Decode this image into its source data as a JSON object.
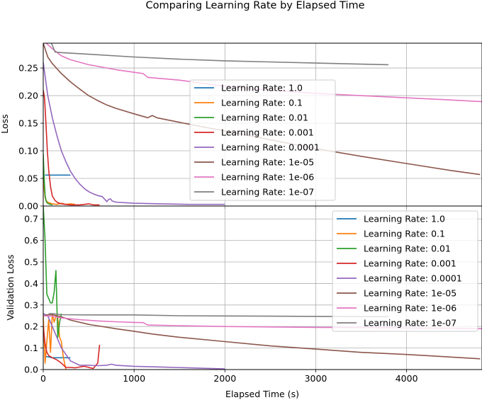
{
  "chart_data": {
    "type": "line",
    "title": "Comparing Learning Rate by Elapsed Time",
    "xlabel": "Elapsed Time (s)",
    "xlim": [
      0,
      4830
    ],
    "x_ticks": [
      0,
      1000,
      2000,
      3000,
      4000
    ],
    "x_tick_labels": [
      "0",
      "1000",
      "2000",
      "3000",
      "4000"
    ],
    "grid": true,
    "colors": [
      "#1f77b4",
      "#ff7f0e",
      "#2ca02c",
      "#d62728",
      "#9467bd",
      "#8c564b",
      "#e377c2",
      "#7f7f7f"
    ],
    "legend_labels": [
      "Learning Rate: 1.0",
      "Learning Rate: 0.1",
      "Learning Rate: 0.01",
      "Learning Rate: 0.001",
      "Learning Rate: 0.0001",
      "Learning Rate: 1e-05",
      "Learning Rate: 1e-06",
      "Learning Rate: 1e-07"
    ],
    "panels": [
      {
        "ylabel": "Loss",
        "ylim": [
          0,
          0.295
        ],
        "y_ticks": [
          0,
          0.05,
          0.1,
          0.15,
          0.2,
          0.25
        ],
        "y_tick_labels": [
          "0.00",
          "0.05",
          "0.10",
          "0.15",
          "0.20",
          "0.25"
        ],
        "legend_position": "center",
        "series": [
          {
            "name": "Learning Rate: 1.0",
            "x": [
              20,
              40,
              150,
              300
            ],
            "y": [
              0.056,
              0.056,
              0.056,
              0.056
            ]
          },
          {
            "name": "Learning Rate: 0.1",
            "x": [
              0,
              20,
              40,
              60,
              80,
              100,
              150,
              200,
              250,
              300,
              350
            ],
            "y": [
              0.05,
              0.015,
              0.008,
              0.006,
              0.005,
              0.004,
              0.003,
              0.005,
              0.003,
              0.004,
              0.003
            ]
          },
          {
            "name": "Learning Rate: 0.01",
            "x": [
              0,
              10,
              20,
              30,
              40,
              60,
              80,
              100
            ],
            "y": [
              0.095,
              0.05,
              0.02,
              0.01,
              0.006,
              0.004,
              0.003,
              0.002
            ]
          },
          {
            "name": "Learning Rate: 0.001",
            "x": [
              0,
              15,
              30,
              45,
              60,
              80,
              100,
              130,
              160,
              200,
              250,
              300,
              400,
              500,
              550,
              620
            ],
            "y": [
              0.21,
              0.195,
              0.15,
              0.1,
              0.065,
              0.035,
              0.018,
              0.01,
              0.006,
              0.004,
              0.003,
              0.002,
              0.002,
              0.004,
              0.002,
              0.002
            ]
          },
          {
            "name": "Learning Rate: 0.0001",
            "x": [
              0,
              50,
              100,
              150,
              200,
              250,
              300,
              350,
              400,
              450,
              500,
              550,
              600,
              650,
              700,
              720,
              740,
              760,
              800,
              1000,
              1300,
              1600,
              2000
            ],
            "y": [
              0.26,
              0.2,
              0.16,
              0.128,
              0.1,
              0.08,
              0.063,
              0.05,
              0.04,
              0.032,
              0.026,
              0.022,
              0.019,
              0.017,
              0.008,
              0.012,
              0.013,
              0.009,
              0.007,
              0.005,
              0.004,
              0.003,
              0.003
            ]
          },
          {
            "name": "Learning Rate: 1e-05",
            "x": [
              0,
              50,
              100,
              200,
              300,
              400,
              500,
              600,
              700,
              800,
              1000,
              1150,
              1200,
              1250,
              1400,
              1700,
              2000,
              2500,
              3000,
              3500,
              4000,
              4500,
              4810
            ],
            "y": [
              0.295,
              0.27,
              0.258,
              0.24,
              0.225,
              0.212,
              0.2,
              0.191,
              0.183,
              0.177,
              0.167,
              0.16,
              0.164,
              0.16,
              0.155,
              0.145,
              0.136,
              0.12,
              0.104,
              0.09,
              0.077,
              0.064,
              0.057
            ]
          },
          {
            "name": "Learning Rate: 1e-06",
            "x": [
              0,
              100,
              200,
              300,
              500,
              800,
              1100,
              1150,
              1500,
              2000,
              2500,
              3000,
              3500,
              4000,
              4500,
              4830
            ],
            "y": [
              0.3,
              0.285,
              0.272,
              0.265,
              0.256,
              0.247,
              0.24,
              0.233,
              0.228,
              0.217,
              0.21,
              0.204,
              0.2,
              0.196,
              0.192,
              0.189
            ]
          },
          {
            "name": "Learning Rate: 1e-07",
            "x": [
              90,
              130,
              200,
              500,
              1000,
              1500,
              2000,
              2500,
              3000,
              3500,
              3800
            ],
            "y": [
              0.295,
              0.279,
              0.278,
              0.275,
              0.27,
              0.266,
              0.263,
              0.261,
              0.259,
              0.257,
              0.256
            ]
          }
        ]
      },
      {
        "ylabel": "Validation Loss",
        "ylim": [
          0,
          0.76
        ],
        "y_ticks": [
          0,
          0.1,
          0.2,
          0.3,
          0.4,
          0.5,
          0.6,
          0.7
        ],
        "y_tick_labels": [
          "0.0",
          "0.1",
          "0.2",
          "0.3",
          "0.4",
          "0.5",
          "0.6",
          "0.7"
        ],
        "legend_position": "upper right",
        "series": [
          {
            "name": "Learning Rate: 1.0",
            "x": [
              20,
              50,
              100,
              200,
              300
            ],
            "y": [
              0.06,
              0.06,
              0.055,
              0.055,
              0.055
            ]
          },
          {
            "name": "Learning Rate: 0.1",
            "x": [
              0,
              20,
              40,
              60,
              80,
              100,
              120,
              140,
              160,
              180,
              200,
              220,
              250
            ],
            "y": [
              0.25,
              0.03,
              0.13,
              0.23,
              0.08,
              0.26,
              0.22,
              0.25,
              0.24,
              0.15,
              0.13,
              0.06,
              0.0
            ]
          },
          {
            "name": "Learning Rate: 0.01",
            "x": [
              0,
              20,
              40,
              60,
              80,
              100,
              120,
              140,
              160,
              180,
              200
            ],
            "y": [
              0.76,
              0.6,
              0.35,
              0.33,
              0.31,
              0.31,
              0.36,
              0.46,
              0.15,
              0.22,
              0.26
            ]
          },
          {
            "name": "Learning Rate: 0.001",
            "x": [
              0,
              20,
              40,
              60,
              80,
              100,
              150,
              200,
              250,
              300,
              350,
              400,
              450,
              500,
              550,
              600,
              620
            ],
            "y": [
              0.2,
              0.12,
              0.08,
              0.065,
              0.06,
              0.055,
              0.045,
              0.03,
              0.01,
              0.01,
              0.008,
              0.012,
              0.015,
              0.01,
              0.005,
              0.03,
              0.115
            ]
          },
          {
            "name": "Learning Rate: 0.0001",
            "x": [
              0,
              50,
              100,
              200,
              300,
              400,
              500,
              600,
              700,
              750,
              800,
              1000,
              1300,
              1600,
              2000
            ],
            "y": [
              0.26,
              0.25,
              0.2,
              0.1,
              0.04,
              0.02,
              0.02,
              0.018,
              0.02,
              0.025,
              0.02,
              0.015,
              0.012,
              0.008,
              0.003
            ]
          },
          {
            "name": "Learning Rate: 1e-05",
            "x": [
              0,
              50,
              100,
              150,
              200,
              300,
              500,
              800,
              1000,
              1200,
              1500,
              2000,
              2500,
              3000,
              3500,
              4000,
              4500,
              4810
            ],
            "y": [
              0.25,
              0.255,
              0.255,
              0.25,
              0.245,
              0.23,
              0.21,
              0.19,
              0.178,
              0.165,
              0.15,
              0.13,
              0.11,
              0.095,
              0.08,
              0.07,
              0.058,
              0.05
            ]
          },
          {
            "name": "Learning Rate: 1e-06",
            "x": [
              0,
              100,
              200,
              400,
              600,
              800,
              1000,
              1100,
              1150,
              1500,
              2000,
              2500,
              3000,
              3500,
              4000,
              4500,
              4830
            ],
            "y": [
              0.25,
              0.248,
              0.24,
              0.232,
              0.226,
              0.222,
              0.219,
              0.218,
              0.207,
              0.204,
              0.2,
              0.198,
              0.196,
              0.195,
              0.193,
              0.192,
              0.19
            ]
          },
          {
            "name": "Learning Rate: 1e-07",
            "x": [
              60,
              100,
              200,
              500,
              1000,
              1500,
              2000,
              2500,
              3000,
              3500,
              3800
            ],
            "y": [
              0.26,
              0.26,
              0.255,
              0.254,
              0.254,
              0.25,
              0.249,
              0.248,
              0.247,
              0.246,
              0.246
            ]
          }
        ]
      }
    ]
  }
}
